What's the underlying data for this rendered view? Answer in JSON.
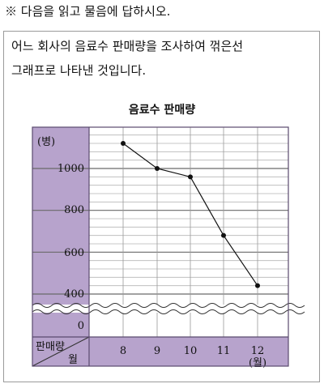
{
  "instruction": "※ 다음을 읽고 물음에 답하시오.",
  "description_line1": "어느 회사의 음료수 판매량을 조사하여 꺾은선",
  "description_line2": "그래프로 나타낸 것입니다.",
  "colors": {
    "panel": "#b7a3cc",
    "plot_border": "#5a4a6e",
    "line": "#111111"
  },
  "chart_data": {
    "type": "line",
    "title": "음료수 판매량",
    "ylabel": "(병)",
    "xlabel_header": "판매량",
    "ylabel_header": "월",
    "x_unit": "(월)",
    "categories": [
      "8",
      "9",
      "10",
      "11",
      "12"
    ],
    "values": [
      1120,
      1000,
      960,
      680,
      440
    ],
    "yticks": [
      "0",
      "400",
      "600",
      "800",
      "1000"
    ],
    "ylim": [
      360,
      1200
    ],
    "axis_break": true
  }
}
